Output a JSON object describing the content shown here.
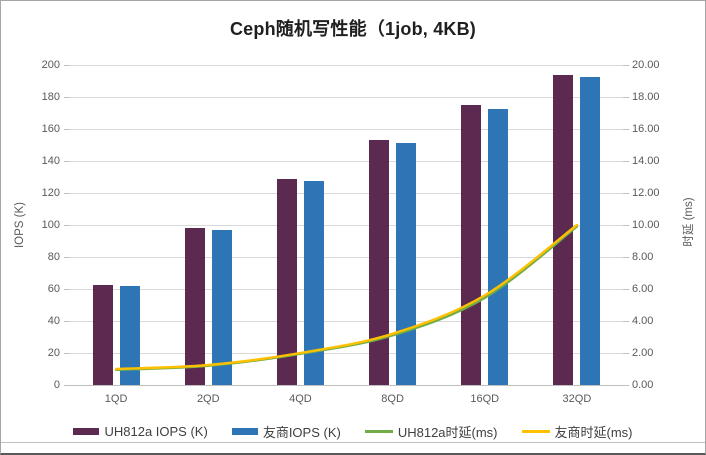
{
  "chart_data": {
    "type": "combo-bar-line",
    "title": "Ceph随机写性能（1job, 4KB)",
    "categories": [
      "1QD",
      "2QD",
      "4QD",
      "8QD",
      "16QD",
      "32QD"
    ],
    "bar_series": [
      {
        "name": "UH812a IOPS (K)",
        "color": "#5C2A51",
        "axis": "left",
        "values": [
          62.4,
          98.0,
          128.7,
          153.0,
          175.0,
          194.0
        ]
      },
      {
        "name": "友商IOPS (K)",
        "color": "#2E75B6",
        "axis": "left",
        "values": [
          61.8,
          96.9,
          127.7,
          151.5,
          172.5,
          192.7
        ]
      }
    ],
    "line_series": [
      {
        "name": "UH812a时延(ms)",
        "color": "#70AD47",
        "axis": "right",
        "values": [
          0.95,
          1.2,
          1.95,
          3.1,
          5.45,
          9.9
        ]
      },
      {
        "name": "友商时延(ms)",
        "color": "#FFC000",
        "axis": "right",
        "values": [
          1.0,
          1.25,
          2.0,
          3.2,
          5.6,
          10.0
        ]
      }
    ],
    "ylabel_left": "IOPS (K)",
    "ylabel_right": "时延 (ms)",
    "y_left": {
      "min": 0,
      "max": 200,
      "step": 20
    },
    "y_right": {
      "min": 0,
      "max": 20,
      "step": 2,
      "tick_format": "0.00"
    },
    "grid": true,
    "smooth_lines": true,
    "legend_position": "bottom",
    "colors": {
      "gridline": "#D9D9D9",
      "axis_line": "#BFBFBF",
      "tick_label": "#595959",
      "title": "#1F1F1F"
    }
  }
}
